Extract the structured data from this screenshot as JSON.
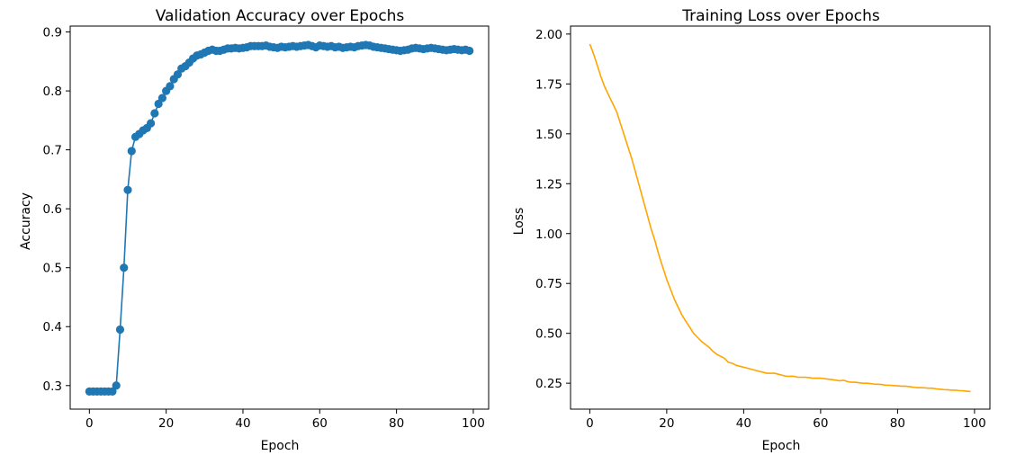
{
  "chart_data": [
    {
      "type": "line",
      "markers": true,
      "title": "Validation Accuracy over Epochs",
      "xlabel": "Epoch",
      "ylabel": "Accuracy",
      "xlim": [
        -5,
        104
      ],
      "ylim": [
        0.26,
        0.91
      ],
      "xticks": [
        0,
        20,
        40,
        60,
        80,
        100
      ],
      "yticks": [
        0.3,
        0.4,
        0.5,
        0.6,
        0.7,
        0.8,
        0.9
      ],
      "ytick_decimals": 1,
      "grid": false,
      "legend": "none",
      "color": "#1f77b4",
      "series": [
        {
          "x": [
            0,
            1,
            2,
            3,
            4,
            5,
            6,
            7,
            8,
            9,
            10,
            11,
            12,
            13,
            14,
            15,
            16,
            17,
            18,
            19,
            20,
            21,
            22,
            23,
            24,
            25,
            26,
            27,
            28,
            29,
            30,
            31,
            32,
            33,
            34,
            35,
            36,
            37,
            38,
            39,
            40,
            41,
            42,
            43,
            44,
            45,
            46,
            47,
            48,
            49,
            50,
            51,
            52,
            53,
            54,
            55,
            56,
            57,
            58,
            59,
            60,
            61,
            62,
            63,
            64,
            65,
            66,
            67,
            68,
            69,
            70,
            71,
            72,
            73,
            74,
            75,
            76,
            77,
            78,
            79,
            80,
            81,
            82,
            83,
            84,
            85,
            86,
            87,
            88,
            89,
            90,
            91,
            92,
            93,
            94,
            95,
            96,
            97,
            98,
            99
          ],
          "values": [
            0.29,
            0.29,
            0.29,
            0.29,
            0.29,
            0.29,
            0.29,
            0.3,
            0.395,
            0.5,
            0.632,
            0.698,
            0.722,
            0.727,
            0.733,
            0.737,
            0.745,
            0.762,
            0.778,
            0.788,
            0.8,
            0.808,
            0.82,
            0.828,
            0.838,
            0.842,
            0.848,
            0.855,
            0.86,
            0.862,
            0.865,
            0.868,
            0.87,
            0.868,
            0.868,
            0.87,
            0.872,
            0.872,
            0.873,
            0.872,
            0.873,
            0.874,
            0.876,
            0.876,
            0.876,
            0.876,
            0.877,
            0.875,
            0.874,
            0.873,
            0.875,
            0.874,
            0.875,
            0.876,
            0.875,
            0.876,
            0.877,
            0.878,
            0.876,
            0.874,
            0.877,
            0.876,
            0.875,
            0.876,
            0.874,
            0.875,
            0.873,
            0.874,
            0.875,
            0.874,
            0.876,
            0.877,
            0.878,
            0.877,
            0.875,
            0.874,
            0.873,
            0.872,
            0.871,
            0.87,
            0.869,
            0.868,
            0.869,
            0.87,
            0.872,
            0.873,
            0.872,
            0.871,
            0.872,
            0.873,
            0.872,
            0.871,
            0.87,
            0.869,
            0.87,
            0.871,
            0.87,
            0.869,
            0.87,
            0.868
          ]
        }
      ]
    },
    {
      "type": "line",
      "markers": false,
      "title": "Training Loss over Epochs",
      "xlabel": "Epoch",
      "ylabel": "Loss",
      "xlim": [
        -5,
        104
      ],
      "ylim": [
        0.12,
        2.04
      ],
      "xticks": [
        0,
        20,
        40,
        60,
        80,
        100
      ],
      "yticks": [
        0.25,
        0.5,
        0.75,
        1.0,
        1.25,
        1.5,
        1.75,
        2.0
      ],
      "ytick_decimals": 2,
      "grid": false,
      "legend": "none",
      "color": "#ffa500",
      "series": [
        {
          "x": [
            0,
            1,
            2,
            3,
            4,
            5,
            6,
            7,
            8,
            9,
            10,
            11,
            12,
            13,
            14,
            15,
            16,
            17,
            18,
            19,
            20,
            21,
            22,
            23,
            24,
            25,
            26,
            27,
            28,
            29,
            30,
            31,
            32,
            33,
            34,
            35,
            36,
            37,
            38,
            39,
            40,
            41,
            42,
            43,
            44,
            45,
            46,
            47,
            48,
            49,
            50,
            51,
            52,
            53,
            54,
            55,
            56,
            57,
            58,
            59,
            60,
            61,
            62,
            63,
            64,
            65,
            66,
            67,
            68,
            69,
            70,
            71,
            72,
            73,
            74,
            75,
            76,
            77,
            78,
            79,
            80,
            81,
            82,
            83,
            84,
            85,
            86,
            87,
            88,
            89,
            90,
            91,
            92,
            93,
            94,
            95,
            96,
            97,
            98,
            99
          ],
          "values": [
            1.95,
            1.9,
            1.84,
            1.78,
            1.73,
            1.69,
            1.65,
            1.61,
            1.55,
            1.49,
            1.43,
            1.37,
            1.3,
            1.23,
            1.16,
            1.09,
            1.02,
            0.96,
            0.89,
            0.83,
            0.77,
            0.72,
            0.67,
            0.63,
            0.59,
            0.56,
            0.53,
            0.5,
            0.48,
            0.46,
            0.445,
            0.43,
            0.41,
            0.395,
            0.385,
            0.375,
            0.355,
            0.35,
            0.34,
            0.335,
            0.33,
            0.325,
            0.32,
            0.315,
            0.31,
            0.305,
            0.3,
            0.3,
            0.3,
            0.295,
            0.29,
            0.285,
            0.285,
            0.285,
            0.28,
            0.28,
            0.28,
            0.278,
            0.275,
            0.275,
            0.275,
            0.273,
            0.27,
            0.268,
            0.265,
            0.262,
            0.265,
            0.258,
            0.255,
            0.255,
            0.252,
            0.25,
            0.25,
            0.248,
            0.245,
            0.245,
            0.243,
            0.24,
            0.24,
            0.238,
            0.237,
            0.235,
            0.235,
            0.233,
            0.23,
            0.228,
            0.228,
            0.227,
            0.225,
            0.225,
            0.222,
            0.22,
            0.218,
            0.217,
            0.215,
            0.215,
            0.213,
            0.212,
            0.21,
            0.208
          ]
        }
      ]
    }
  ]
}
